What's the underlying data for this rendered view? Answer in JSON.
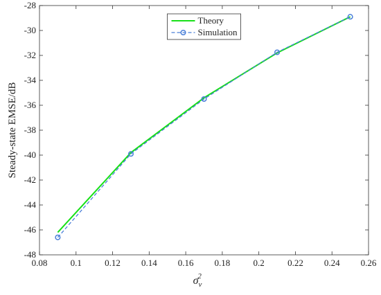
{
  "chart_data": {
    "type": "line",
    "xlabel": {
      "base": "σ",
      "sub": "v",
      "sup": "2"
    },
    "ylabel": "Steady-state EMSE/dB",
    "x": [
      0.09,
      0.13,
      0.17,
      0.21,
      0.25
    ],
    "series": [
      {
        "name": "Theory",
        "color": "#17e017",
        "dash": false,
        "marker": false,
        "values": [
          -46.2,
          -39.8,
          -35.4,
          -31.8,
          -28.9
        ]
      },
      {
        "name": "Simulation",
        "color": "#4a7fd8",
        "dash": true,
        "marker": true,
        "values": [
          -46.6,
          -39.9,
          -35.5,
          -31.75,
          -28.9
        ]
      }
    ],
    "xlim": [
      0.08,
      0.26
    ],
    "xticks": [
      0.08,
      0.1,
      0.12,
      0.14,
      0.16,
      0.18,
      0.2,
      0.22,
      0.24,
      0.26
    ],
    "ylim": [
      -48,
      -28
    ],
    "yticks": [
      -48,
      -46,
      -44,
      -42,
      -40,
      -38,
      -36,
      -34,
      -32,
      -30,
      -28
    ],
    "legend": "upper center",
    "grid": false
  }
}
